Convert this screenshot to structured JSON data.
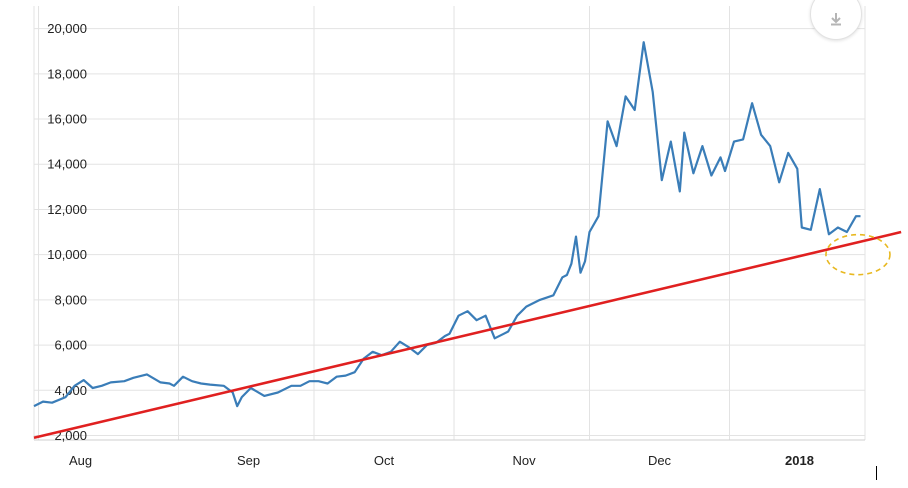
{
  "chart_data": {
    "type": "line",
    "y_ticks": [
      "2,000",
      "4,000",
      "6,000",
      "8,000",
      "10,000",
      "12,000",
      "14,000",
      "16,000",
      "18,000",
      "20,000"
    ],
    "y_tick_values": [
      2000,
      4000,
      6000,
      8000,
      10000,
      12000,
      14000,
      16000,
      18000,
      20000
    ],
    "x_labels": [
      {
        "label": "Aug",
        "date": "2017-08-01"
      },
      {
        "label": "Sep",
        "date": "2017-09-01"
      },
      {
        "label": "Oct",
        "date": "2017-10-01"
      },
      {
        "label": "Nov",
        "date": "2017-11-01"
      },
      {
        "label": "Dec",
        "date": "2017-12-01"
      },
      {
        "label": "2018",
        "date": "2018-01-01",
        "bold": true
      }
    ],
    "xlim": [
      "2017-07-31",
      "2018-01-31"
    ],
    "ylim": [
      1800,
      21000
    ],
    "grid": true,
    "series_color": "#3a7db8",
    "series": [
      {
        "x": [
          "2017-07-31",
          "2017-08-02",
          "2017-08-04",
          "2017-08-07",
          "2017-08-09",
          "2017-08-11",
          "2017-08-13",
          "2017-08-15",
          "2017-08-17",
          "2017-08-20",
          "2017-08-22",
          "2017-08-25",
          "2017-08-28",
          "2017-08-30",
          "2017-08-31",
          "2017-09-02",
          "2017-09-04",
          "2017-09-06",
          "2017-09-08",
          "2017-09-11",
          "2017-09-13",
          "2017-09-14",
          "2017-09-15",
          "2017-09-17",
          "2017-09-20",
          "2017-09-23",
          "2017-09-26",
          "2017-09-28",
          "2017-09-30",
          "2017-10-02",
          "2017-10-04",
          "2017-10-06",
          "2017-10-08",
          "2017-10-10",
          "2017-10-12",
          "2017-10-14",
          "2017-10-16",
          "2017-10-18",
          "2017-10-20",
          "2017-10-22",
          "2017-10-24",
          "2017-10-26",
          "2017-10-28",
          "2017-10-30",
          "2017-10-31",
          "2017-11-02",
          "2017-11-04",
          "2017-11-06",
          "2017-11-08",
          "2017-11-10",
          "2017-11-12",
          "2017-11-13",
          "2017-11-15",
          "2017-11-17",
          "2017-11-20",
          "2017-11-23",
          "2017-11-25",
          "2017-11-26",
          "2017-11-27",
          "2017-11-28",
          "2017-11-29",
          "2017-11-30",
          "2017-12-01",
          "2017-12-03",
          "2017-12-05",
          "2017-12-07",
          "2017-12-09",
          "2017-12-11",
          "2017-12-13",
          "2017-12-15",
          "2017-12-17",
          "2017-12-19",
          "2017-12-21",
          "2017-12-22",
          "2017-12-24",
          "2017-12-26",
          "2017-12-28",
          "2017-12-30",
          "2017-12-31",
          "2018-01-02",
          "2018-01-04",
          "2018-01-06",
          "2018-01-08",
          "2018-01-10",
          "2018-01-12",
          "2018-01-14",
          "2018-01-16",
          "2018-01-17",
          "2018-01-19",
          "2018-01-21",
          "2018-01-23",
          "2018-01-25",
          "2018-01-27",
          "2018-01-29",
          "2018-01-30"
        ],
        "y": [
          3300,
          3500,
          3450,
          3700,
          4200,
          4450,
          4100,
          4200,
          4350,
          4400,
          4550,
          4700,
          4350,
          4300,
          4200,
          4600,
          4400,
          4300,
          4250,
          4200,
          3900,
          3300,
          3700,
          4100,
          3750,
          3900,
          4200,
          4200,
          4400,
          4400,
          4300,
          4600,
          4650,
          4800,
          5400,
          5700,
          5550,
          5700,
          6150,
          5900,
          5600,
          6000,
          6100,
          6400,
          6500,
          7300,
          7500,
          7100,
          7300,
          6300,
          6500,
          6600,
          7300,
          7700,
          8000,
          8200,
          9000,
          9100,
          9600,
          10800,
          9200,
          9700,
          11000,
          11700,
          15900,
          14800,
          17000,
          16400,
          19400,
          17200,
          13300,
          15000,
          12800,
          15400,
          13600,
          14800,
          13500,
          14300,
          13700,
          15000,
          15100,
          16700,
          15300,
          14800,
          13200,
          14500,
          13800,
          11200,
          11100,
          12900,
          10900,
          11200,
          11000,
          11700,
          11700
        ]
      }
    ],
    "trendline": {
      "color": "#e02020",
      "from": {
        "x": "2017-07-31",
        "y": 1900
      },
      "to": {
        "x": "2018-02-08",
        "y": 11000
      }
    },
    "highlight": {
      "color": "#e8b820",
      "style": "dashed-ellipse",
      "center": {
        "x": "2018-01-29",
        "y": 10000
      }
    }
  }
}
